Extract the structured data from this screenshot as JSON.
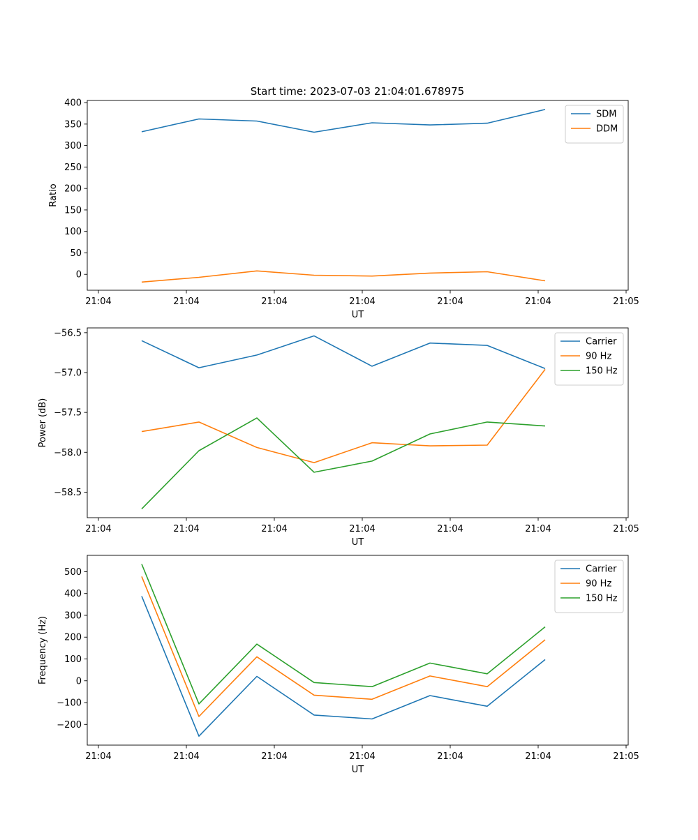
{
  "figure_title": "Start time: 2023-07-03 21:04:01.678975",
  "colors": {
    "blue": "#1f77b4",
    "orange": "#ff7f0e",
    "green": "#2ca02c"
  },
  "chart_data": [
    {
      "type": "line",
      "title": "Start time: 2023-07-03 21:04:01.678975",
      "xlabel": "UT",
      "ylabel": "Ratio",
      "x_tick_labels": [
        "21:04",
        "21:04",
        "21:04",
        "21:04",
        "21:04",
        "21:04",
        "21:05"
      ],
      "ylim": [
        -37,
        405
      ],
      "yticks": [
        0,
        50,
        100,
        150,
        200,
        250,
        300,
        350,
        400
      ],
      "y_tick_labels": [
        "0",
        "50",
        "100",
        "150",
        "200",
        "250",
        "300",
        "350",
        "400"
      ],
      "legend_position": "top-right",
      "series": [
        {
          "name": "SDM",
          "color": "#1f77b4",
          "values": [
            332,
            362,
            357,
            331,
            353,
            348,
            352,
            384
          ]
        },
        {
          "name": "DDM",
          "color": "#ff7f0e",
          "values": [
            -18,
            -7,
            8,
            -2,
            -4,
            3,
            6,
            -15
          ]
        }
      ]
    },
    {
      "type": "line",
      "title": "",
      "xlabel": "UT",
      "ylabel": "Power (dB)",
      "x_tick_labels": [
        "21:04",
        "21:04",
        "21:04",
        "21:04",
        "21:04",
        "21:04",
        "21:05"
      ],
      "ylim": [
        -58.82,
        -56.44
      ],
      "yticks": [
        -58.5,
        -58.0,
        -57.5,
        -57.0,
        -56.5
      ],
      "y_tick_labels": [
        "−58.5",
        "−58.0",
        "−57.5",
        "−57.0",
        "−56.5"
      ],
      "legend_position": "top-right",
      "series": [
        {
          "name": "Carrier",
          "color": "#1f77b4",
          "values": [
            -56.6,
            -56.94,
            -56.78,
            -56.54,
            -56.92,
            -56.63,
            -56.66,
            -56.95
          ]
        },
        {
          "name": "90 Hz",
          "color": "#ff7f0e",
          "values": [
            -57.74,
            -57.62,
            -57.94,
            -58.13,
            -57.88,
            -57.92,
            -57.91,
            -56.96
          ]
        },
        {
          "name": "150 Hz",
          "color": "#2ca02c",
          "values": [
            -58.71,
            -57.98,
            -57.57,
            -58.25,
            -58.11,
            -57.77,
            -57.62,
            -57.67
          ]
        }
      ]
    },
    {
      "type": "line",
      "title": "",
      "xlabel": "UT",
      "ylabel": "Frequency (Hz)",
      "x_tick_labels": [
        "21:04",
        "21:04",
        "21:04",
        "21:04",
        "21:04",
        "21:04",
        "21:05"
      ],
      "ylim": [
        -295,
        575
      ],
      "yticks": [
        -200,
        -100,
        0,
        100,
        200,
        300,
        400,
        500
      ],
      "y_tick_labels": [
        "−200",
        "−100",
        "0",
        "100",
        "200",
        "300",
        "400",
        "500"
      ],
      "legend_position": "top-right",
      "series": [
        {
          "name": "Carrier",
          "color": "#1f77b4",
          "values": [
            388,
            -254,
            20,
            -157,
            -175,
            -68,
            -117,
            97
          ]
        },
        {
          "name": "90 Hz",
          "color": "#ff7f0e",
          "values": [
            478,
            -164,
            110,
            -66,
            -85,
            22,
            -27,
            188
          ]
        },
        {
          "name": "150 Hz",
          "color": "#2ca02c",
          "values": [
            535,
            -106,
            168,
            -8,
            -27,
            81,
            32,
            247
          ]
        }
      ]
    }
  ]
}
